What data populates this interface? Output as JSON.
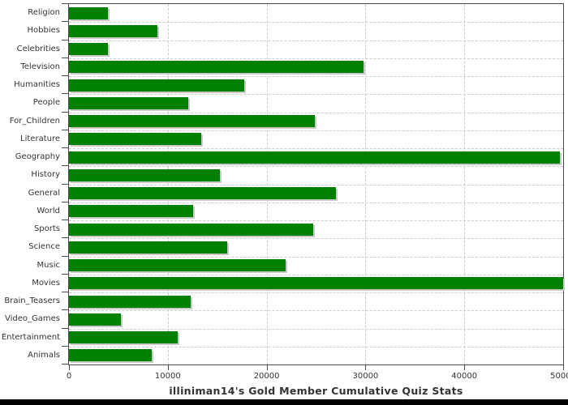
{
  "chart_data": {
    "type": "bar",
    "orientation": "horizontal",
    "title": "illiniman14's Gold Member Cumulative Quiz Stats",
    "xlabel": "",
    "ylabel": "",
    "xlim": [
      0,
      50000
    ],
    "grid": "dashed-both-axes",
    "legend": "none",
    "categories": [
      "Religion",
      "Hobbies",
      "Celebrities",
      "Television",
      "Humanities",
      "People",
      "For_Children",
      "Literature",
      "Geography",
      "History",
      "General",
      "World",
      "Sports",
      "Science",
      "Music",
      "Movies",
      "Brain_Teasers",
      "Video_Games",
      "Entertainment",
      "Animals"
    ],
    "values": [
      3950,
      8950,
      3900,
      29800,
      17700,
      12050,
      24900,
      13400,
      49650,
      15300,
      27050,
      12600,
      24700,
      16050,
      21900,
      50000,
      12300,
      5250,
      11000,
      8400
    ],
    "x_ticks": [
      0,
      10000,
      20000,
      30000,
      40000,
      50000
    ],
    "x_tick_labels": [
      "0",
      "10000",
      "20000",
      "30000",
      "40000",
      "50000"
    ]
  },
  "colors": {
    "bar": "#008000",
    "bar_shadow": "#c9c9c9",
    "grid": "#cccccc",
    "axis": "#4a4a4a",
    "text": "#333333",
    "bottom_strip": "#000000",
    "background": "#ffffff"
  }
}
